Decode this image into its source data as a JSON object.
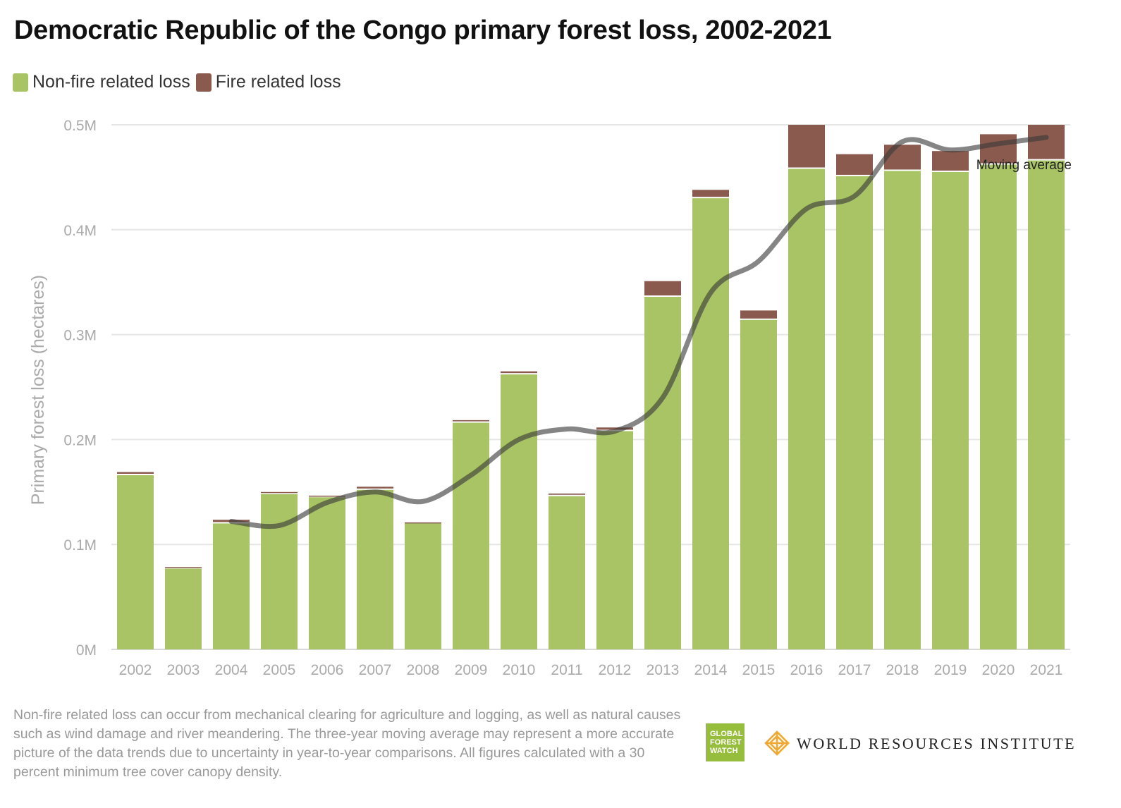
{
  "title": "Democratic Republic of the Congo primary forest loss, 2002-2021",
  "legend": [
    {
      "label": "Non-fire related loss",
      "color": "#a8c464"
    },
    {
      "label": "Fire related loss",
      "color": "#8b5a4e"
    }
  ],
  "chart_data": {
    "type": "bar",
    "stacked": true,
    "categories": [
      "2002",
      "2003",
      "2004",
      "2005",
      "2006",
      "2007",
      "2008",
      "2009",
      "2010",
      "2011",
      "2012",
      "2013",
      "2014",
      "2015",
      "2016",
      "2017",
      "2018",
      "2019",
      "2020",
      "2021"
    ],
    "series": [
      {
        "name": "Non-fire related loss",
        "color": "#a8c464",
        "values": [
          166000,
          77000,
          120000,
          148000,
          145000,
          152000,
          120000,
          216000,
          262000,
          146000,
          208000,
          336000,
          430000,
          314000,
          458000,
          451000,
          456000,
          455000,
          462000,
          466000
        ]
      },
      {
        "name": "Fire related loss",
        "color": "#8b5a4e",
        "values": [
          3000,
          1500,
          3500,
          2000,
          1500,
          3000,
          1000,
          2500,
          3000,
          2500,
          3500,
          15000,
          8000,
          9000,
          42000,
          21000,
          25000,
          20000,
          29000,
          34000
        ]
      }
    ],
    "moving_average": {
      "label": "Moving average",
      "color": "#4a4a4a",
      "x": [
        "2004",
        "2005",
        "2006",
        "2007",
        "2008",
        "2009",
        "2010",
        "2011",
        "2012",
        "2013",
        "2014",
        "2015",
        "2016",
        "2017",
        "2018",
        "2019",
        "2020",
        "2021"
      ],
      "values": [
        122000,
        118000,
        140000,
        150000,
        141000,
        166000,
        200000,
        210000,
        208000,
        240000,
        340000,
        370000,
        420000,
        432000,
        484000,
        476000,
        482000,
        488000
      ]
    },
    "ylabel": "Primary forest loss (hectares)",
    "xlabel": "",
    "ylim": [
      0,
      500000
    ],
    "yticks": [
      {
        "value": 0,
        "label": "0M"
      },
      {
        "value": 100000,
        "label": "0.1M"
      },
      {
        "value": 200000,
        "label": "0.2M"
      },
      {
        "value": 300000,
        "label": "0.3M"
      },
      {
        "value": 400000,
        "label": "0.4M"
      },
      {
        "value": 500000,
        "label": "0.5M"
      }
    ],
    "grid": true,
    "legend_position": "top-left"
  },
  "footnote": "Non-fire related loss can occur from mechanical clearing for agriculture and logging, as well as natural causes such as wind damage and river meandering. The three-year moving average may represent a more accurate picture of the data trends due to uncertainty in year-to-year comparisons. All figures calculated with a 30 percent minimum tree cover canopy density.",
  "logos": {
    "gfw": [
      "GLOBAL",
      "FOREST",
      "WATCH"
    ],
    "wri": "WORLD RESOURCES INSTITUTE"
  }
}
